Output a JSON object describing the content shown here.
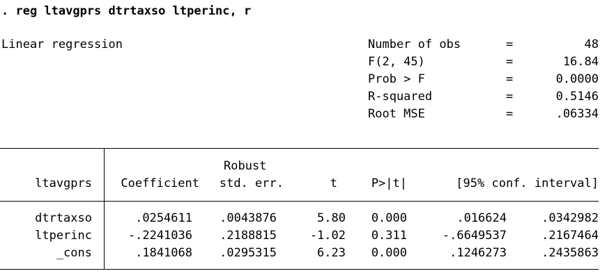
{
  "command": ". reg ltavgprs dtrtaxso ltperinc, r",
  "model_title": "Linear regression",
  "stats": [
    {
      "label": "Number of obs",
      "eq": "=",
      "value": "48"
    },
    {
      "label": "F(2, 45)",
      "eq": "=",
      "value": "16.84"
    },
    {
      "label": "Prob > F",
      "eq": "=",
      "value": "0.0000"
    },
    {
      "label": "R-squared",
      "eq": "=",
      "value": "0.5146"
    },
    {
      "label": "Root MSE",
      "eq": "=",
      "value": ".06334"
    }
  ],
  "table": {
    "depvar": "ltavgprs",
    "header_robust": "Robust",
    "headers": {
      "coef": "Coefficient",
      "se": "std. err.",
      "t": "t",
      "p": "P>|t|",
      "ci": "[95% conf. interval]"
    },
    "rows": [
      {
        "var": "dtrtaxso",
        "coef": ".0254611",
        "se": ".0043876",
        "t": "5.80",
        "p": "0.000",
        "ci_lo": ".016624",
        "ci_hi": ".0342982"
      },
      {
        "var": "ltperinc",
        "coef": "-.2241036",
        "se": ".2188815",
        "t": "-1.02",
        "p": "0.311",
        "ci_lo": "-.6649537",
        "ci_hi": ".2167464"
      },
      {
        "var": "_cons",
        "coef": ".1841068",
        "se": ".0295315",
        "t": "6.23",
        "p": "0.000",
        "ci_lo": ".1246273",
        "ci_hi": ".2435863"
      }
    ]
  }
}
